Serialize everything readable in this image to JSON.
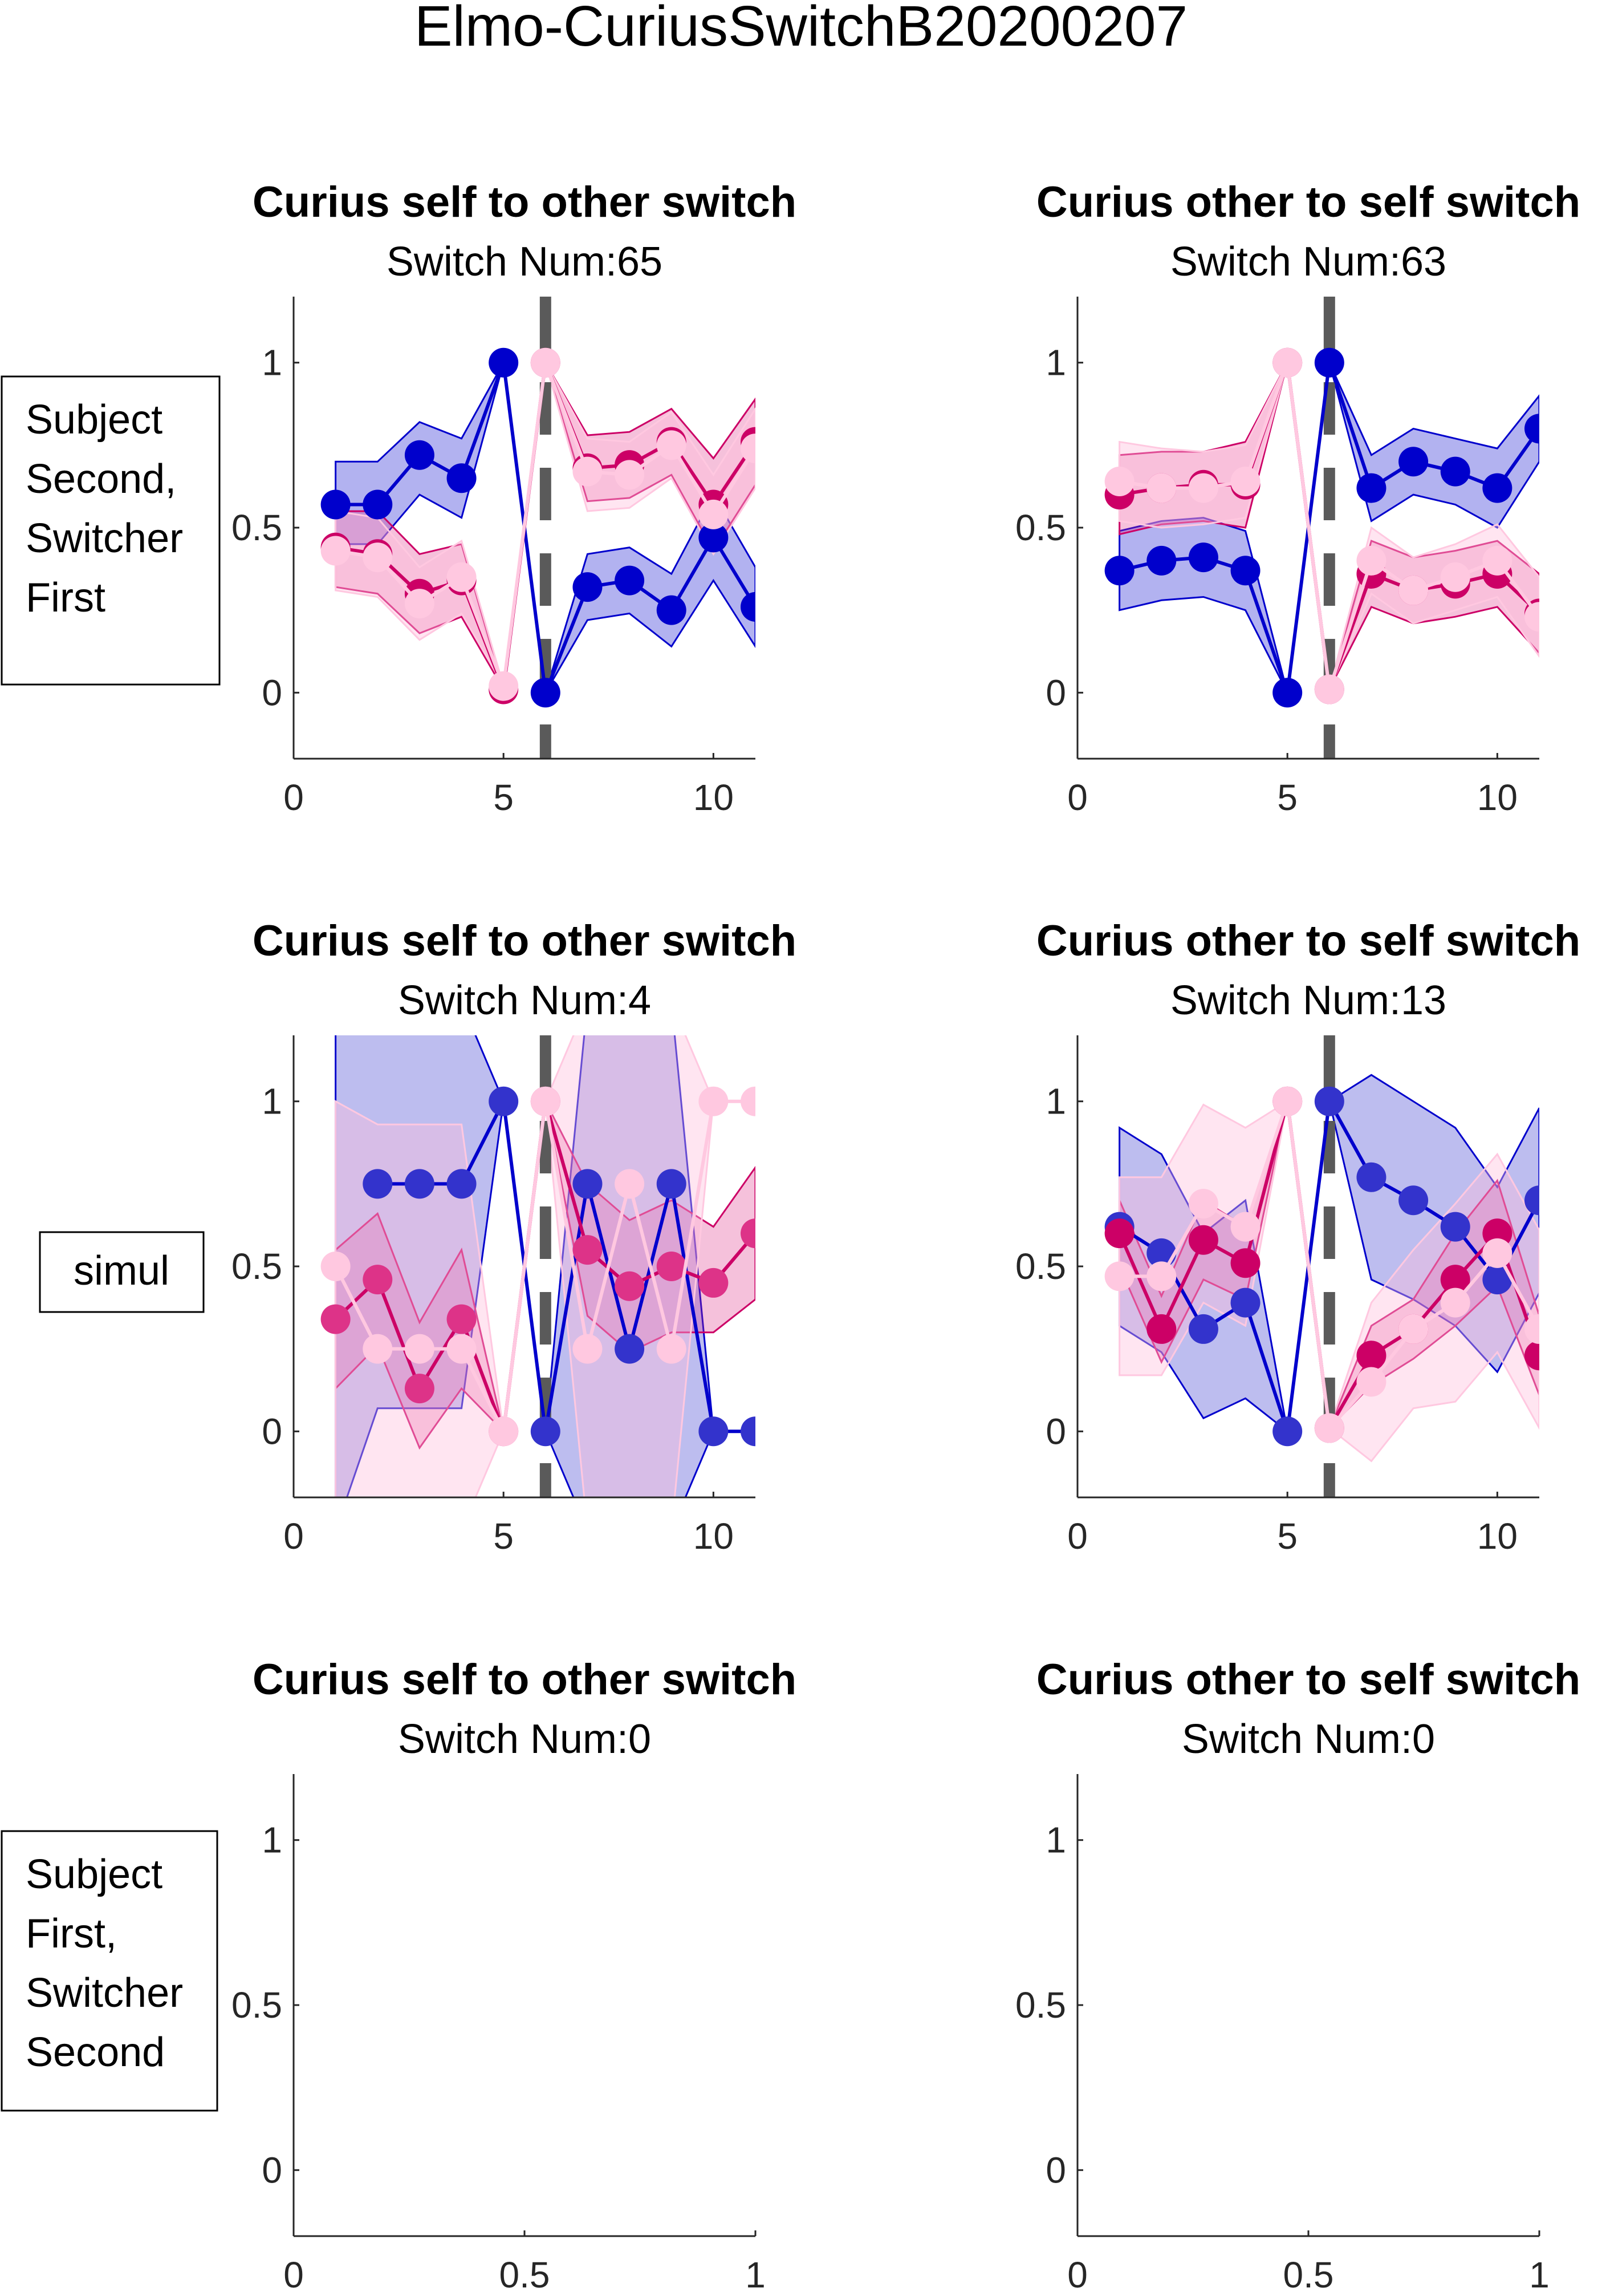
{
  "figure": {
    "title": "Elmo-CuriusSwitchB20200207"
  },
  "row_labels": [
    [
      "Subject",
      "Second,",
      "Switcher",
      "First"
    ],
    [
      "simul"
    ],
    [
      "Subject",
      "First,",
      "Switcher",
      "Second"
    ]
  ],
  "colors": {
    "blue": "#0000cc",
    "blue_mid": "#3333cc",
    "magenta": "#cc0066",
    "pink_mid": "#dd3388",
    "pink_light": "#ffc8e0",
    "divider": "#5a5a5a"
  },
  "chart_data": [
    {
      "type": "line",
      "title": "Curius self to other switch",
      "subtitle": "Switch Num:65",
      "x": [
        1,
        2,
        3,
        4,
        5,
        6,
        7,
        8,
        9,
        10,
        11
      ],
      "xlim": [
        0,
        11
      ],
      "ylim": [
        -0.2,
        1.2
      ],
      "xticks": [
        "0",
        "5",
        "10"
      ],
      "yticks": [
        "0",
        "0.5",
        "1"
      ],
      "divider_x": 6,
      "grid": false,
      "series": [
        {
          "style": "blue_dark",
          "values": [
            0.57,
            0.57,
            0.72,
            0.65,
            1,
            0,
            0.32,
            0.34,
            0.25,
            0.47,
            0.26
          ],
          "upper": [
            0.7,
            0.7,
            0.82,
            0.77,
            1,
            0,
            0.42,
            0.44,
            0.36,
            0.6,
            0.38
          ],
          "lower": [
            0.45,
            0.45,
            0.6,
            0.53,
            1,
            0,
            0.22,
            0.24,
            0.14,
            0.34,
            0.14
          ]
        },
        {
          "style": "pink_dark",
          "values": [
            0.44,
            0.42,
            0.3,
            0.34,
            0.01,
            1,
            0.68,
            0.69,
            0.76,
            0.57,
            0.76
          ],
          "upper": [
            0.55,
            0.55,
            0.42,
            0.45,
            0.01,
            1,
            0.78,
            0.79,
            0.86,
            0.71,
            0.89
          ],
          "lower": [
            0.32,
            0.3,
            0.18,
            0.23,
            0.01,
            1,
            0.58,
            0.59,
            0.66,
            0.43,
            0.63
          ]
        },
        {
          "style": "pink_light",
          "values": [
            0.43,
            0.41,
            0.27,
            0.35,
            0.02,
            1,
            0.67,
            0.66,
            0.75,
            0.54,
            0.74
          ],
          "upper": [
            0.55,
            0.53,
            0.38,
            0.46,
            0.02,
            1,
            0.77,
            0.76,
            0.85,
            0.66,
            0.86
          ],
          "lower": [
            0.31,
            0.29,
            0.16,
            0.24,
            0.02,
            1,
            0.55,
            0.56,
            0.65,
            0.42,
            0.62
          ]
        }
      ]
    },
    {
      "type": "line",
      "title": "Curius other to self switch",
      "subtitle": "Switch Num:63",
      "x": [
        1,
        2,
        3,
        4,
        5,
        6,
        7,
        8,
        9,
        10,
        11
      ],
      "xlim": [
        0,
        11
      ],
      "ylim": [
        -0.2,
        1.2
      ],
      "xticks": [
        "0",
        "5",
        "10"
      ],
      "yticks": [
        "0",
        "0.5",
        "1"
      ],
      "divider_x": 6,
      "grid": false,
      "series": [
        {
          "style": "blue_dark",
          "values": [
            0.37,
            0.4,
            0.41,
            0.37,
            0,
            1,
            0.62,
            0.7,
            0.67,
            0.62,
            0.8
          ],
          "upper": [
            0.49,
            0.52,
            0.53,
            0.49,
            0,
            1,
            0.72,
            0.8,
            0.77,
            0.74,
            0.9
          ],
          "lower": [
            0.25,
            0.28,
            0.29,
            0.25,
            0,
            1,
            0.52,
            0.6,
            0.57,
            0.5,
            0.7
          ]
        },
        {
          "style": "pink_dark",
          "values": [
            0.6,
            0.62,
            0.63,
            0.63,
            1,
            0.01,
            0.36,
            0.31,
            0.33,
            0.36,
            0.24
          ],
          "upper": [
            0.72,
            0.73,
            0.73,
            0.76,
            1,
            0.01,
            0.46,
            0.41,
            0.43,
            0.46,
            0.36
          ],
          "lower": [
            0.48,
            0.51,
            0.52,
            0.5,
            1,
            0.01,
            0.26,
            0.21,
            0.23,
            0.26,
            0.12
          ]
        },
        {
          "style": "pink_light",
          "values": [
            0.64,
            0.62,
            0.62,
            0.64,
            1,
            0.01,
            0.4,
            0.31,
            0.35,
            0.4,
            0.23
          ],
          "upper": [
            0.76,
            0.74,
            0.73,
            0.75,
            1,
            0.01,
            0.5,
            0.41,
            0.45,
            0.51,
            0.35
          ],
          "lower": [
            0.52,
            0.5,
            0.51,
            0.53,
            1,
            0.01,
            0.3,
            0.21,
            0.25,
            0.29,
            0.11
          ]
        }
      ]
    },
    {
      "type": "line",
      "title": "Curius self to other switch",
      "subtitle": "Switch Num:4",
      "x": [
        1,
        2,
        3,
        4,
        5,
        6,
        7,
        8,
        9,
        10,
        11
      ],
      "xlim": [
        0,
        11
      ],
      "ylim": [
        -0.2,
        1.2
      ],
      "xticks": [
        "0",
        "5",
        "10"
      ],
      "yticks": [
        "0",
        "0.5",
        "1"
      ],
      "divider_x": 6,
      "grid": false,
      "series": [
        {
          "style": "blue_mid",
          "values": [
            null,
            0.75,
            0.75,
            0.75,
            1,
            0,
            0.75,
            0.25,
            0.75,
            0,
            0
          ],
          "upper": [
            1.3,
            1.3,
            1.3,
            1.3,
            1,
            0,
            1.3,
            1.3,
            1.3,
            0,
            0
          ],
          "lower": [
            -0.3,
            0.07,
            0.07,
            0.07,
            1,
            0,
            -0.3,
            -0.3,
            -0.3,
            0,
            0
          ]
        },
        {
          "style": "pink_mid",
          "values": [
            0.34,
            0.46,
            0.13,
            0.34,
            0,
            1,
            0.55,
            0.44,
            0.5,
            0.45,
            0.6
          ],
          "upper": [
            0.55,
            0.66,
            0.33,
            0.55,
            0,
            1,
            0.75,
            0.64,
            0.7,
            0.62,
            0.8
          ],
          "lower": [
            0.13,
            0.26,
            -0.05,
            0.13,
            0,
            1,
            0.35,
            0.24,
            0.3,
            0.3,
            0.4
          ]
        },
        {
          "style": "pink_light",
          "values": [
            0.5,
            0.25,
            0.25,
            0.25,
            0,
            1,
            0.25,
            0.75,
            0.25,
            1,
            1
          ],
          "upper": [
            1.0,
            0.93,
            0.93,
            0.93,
            0,
            1,
            1.3,
            1.3,
            1.3,
            1,
            1
          ],
          "lower": [
            -0.2,
            -0.3,
            -0.3,
            -0.3,
            0,
            1,
            -0.3,
            -0.3,
            -0.3,
            1,
            1
          ]
        }
      ]
    },
    {
      "type": "line",
      "title": "Curius other to self switch",
      "subtitle": "Switch Num:13",
      "x": [
        1,
        2,
        3,
        4,
        5,
        6,
        7,
        8,
        9,
        10,
        11
      ],
      "xlim": [
        0,
        11
      ],
      "ylim": [
        -0.2,
        1.2
      ],
      "xticks": [
        "0",
        "5",
        "10"
      ],
      "yticks": [
        "0",
        "0.5",
        "1"
      ],
      "divider_x": 6,
      "grid": false,
      "series": [
        {
          "style": "blue_mid",
          "values": [
            0.62,
            0.54,
            0.31,
            0.39,
            0,
            1,
            0.77,
            0.7,
            0.62,
            0.46,
            0.7
          ],
          "upper": [
            0.92,
            0.84,
            0.6,
            0.7,
            0,
            1,
            1.08,
            1.0,
            0.92,
            0.74,
            0.98
          ],
          "lower": [
            0.32,
            0.24,
            0.04,
            0.1,
            0,
            1,
            0.46,
            0.4,
            0.32,
            0.18,
            0.42
          ]
        },
        {
          "style": "pink_dark",
          "values": [
            0.6,
            0.31,
            0.58,
            0.51,
            1,
            0.01,
            0.23,
            0.31,
            0.46,
            0.6,
            0.23
          ],
          "upper": [
            0.7,
            0.41,
            0.7,
            0.62,
            1,
            0.01,
            0.32,
            0.4,
            0.6,
            0.76,
            0.35
          ],
          "lower": [
            0.5,
            0.21,
            0.46,
            0.4,
            1,
            0.01,
            0.14,
            0.22,
            0.32,
            0.44,
            0.11
          ]
        },
        {
          "style": "pink_light",
          "values": [
            0.47,
            0.47,
            0.69,
            0.62,
            1,
            0.01,
            0.15,
            0.31,
            0.39,
            0.54,
            0.31
          ],
          "upper": [
            0.77,
            0.77,
            0.99,
            0.92,
            1,
            0.01,
            0.39,
            0.55,
            0.69,
            0.84,
            0.61
          ],
          "lower": [
            0.17,
            0.17,
            0.39,
            0.32,
            1,
            0.01,
            -0.09,
            0.07,
            0.09,
            0.24,
            0.01
          ]
        }
      ]
    },
    {
      "type": "line",
      "title": "Curius self to other switch",
      "subtitle": "Switch Num:0",
      "xlim": [
        0,
        1
      ],
      "ylim": [
        -0.2,
        1.2
      ],
      "xticks": [
        "0",
        "0.5",
        "1"
      ],
      "yticks": [
        "0",
        "0.5",
        "1"
      ],
      "grid": false,
      "series": []
    },
    {
      "type": "line",
      "title": "Curius other to self switch",
      "subtitle": "Switch Num:0",
      "xlim": [
        0,
        1
      ],
      "ylim": [
        -0.2,
        1.2
      ],
      "xticks": [
        "0",
        "0.5",
        "1"
      ],
      "yticks": [
        "0",
        "0.5",
        "1"
      ],
      "grid": false,
      "series": []
    }
  ]
}
